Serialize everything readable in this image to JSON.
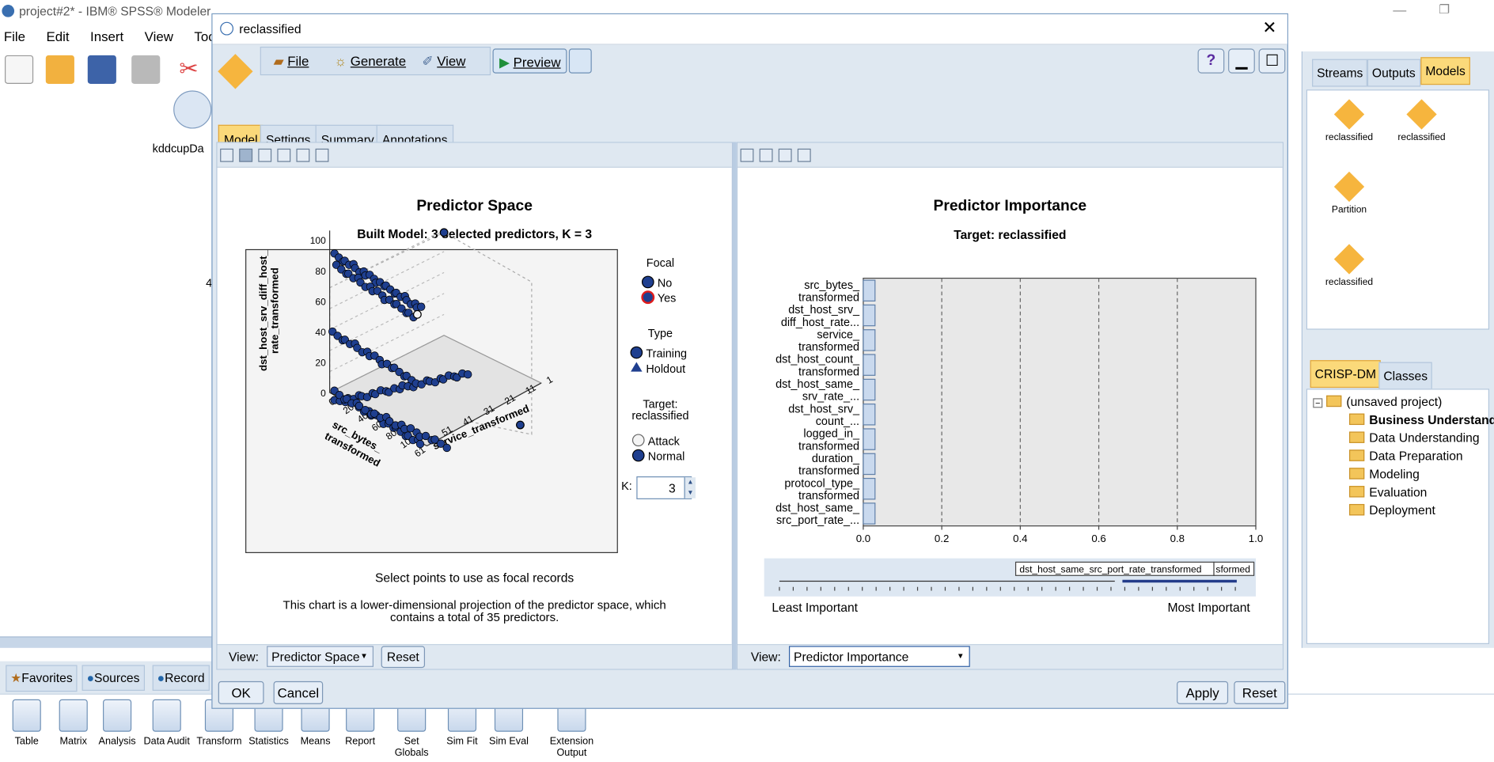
{
  "app": {
    "window_title": "project#2* - IBM® SPSS® Modeler",
    "menus": [
      "File",
      "Edit",
      "Insert",
      "View",
      "Tools"
    ],
    "canvas_node_label": "kddcupDa",
    "canvas_fragment": "4"
  },
  "dialog": {
    "title": "reclassified",
    "toolbar": {
      "file": "File",
      "generate": "Generate",
      "view": "View",
      "preview": "Preview"
    },
    "tabs": [
      "Model",
      "Settings",
      "Summary",
      "Annotations"
    ],
    "ok": "OK",
    "cancel": "Cancel",
    "apply": "Apply",
    "reset": "Reset"
  },
  "left_panel": {
    "title": "Predictor Space",
    "subtitle": "Built Model: 3 selected predictors, K = 3",
    "legend": {
      "focal_title": "Focal",
      "no": "No",
      "yes": "Yes",
      "type_title": "Type",
      "training": "Training",
      "holdout": "Holdout",
      "target_title_1": "Target:",
      "target_title_2": "reclassified",
      "attack": "Attack",
      "normal": "Normal",
      "k_label": "K:",
      "k_value": "3"
    },
    "caption": "Select points to use as focal records",
    "note_1": "This chart is a lower-dimensional projection of the predictor space, which",
    "note_2": "contains a total of 35 predictors.",
    "view_label": "View:",
    "view_value": "Predictor Space",
    "reset": "Reset",
    "axes": {
      "z_label_1": "dst_host_srv_diff_host_",
      "z_label_2": "rate_transformed",
      "x_label_1": "src_bytes_",
      "x_label_2": "transformed",
      "y_label": "service_transformed",
      "z_ticks": [
        "0",
        "20",
        "40",
        "60",
        "80",
        "100"
      ],
      "x_ticks": [
        "0",
        "20",
        "40",
        "60",
        "80",
        "100",
        "61"
      ],
      "y_ticks": [
        "51",
        "41",
        "31",
        "21",
        "11",
        "1"
      ]
    }
  },
  "right_panel": {
    "view_label": "View:",
    "view_value": "Predictor Importance",
    "slider_tooltip": "dst_host_same_src_port_rate_transformed",
    "slider_tooltip_overflow": "sformed",
    "least": "Least Important",
    "most": "Most Important"
  },
  "chart_data": {
    "type": "bar",
    "title": "Predictor Importance",
    "subtitle": "Target: reclassified",
    "categories": [
      [
        "src_bytes_",
        "transformed"
      ],
      [
        "dst_host_srv_",
        "diff_host_rate..."
      ],
      [
        "service_",
        "transformed"
      ],
      [
        "dst_host_count_",
        "transformed"
      ],
      [
        "dst_host_same_",
        "srv_rate_..."
      ],
      [
        "dst_host_srv_",
        "count_..."
      ],
      [
        "logged_in_",
        "transformed"
      ],
      [
        "duration_",
        "transformed"
      ],
      [
        "protocol_type_",
        "transformed"
      ],
      [
        "dst_host_same_",
        "src_port_rate_..."
      ]
    ],
    "values": [
      0.03,
      0.03,
      0.03,
      0.03,
      0.03,
      0.03,
      0.03,
      0.03,
      0.03,
      0.03
    ],
    "xlim": [
      0,
      1
    ],
    "xticks": [
      "0.0",
      "0.2",
      "0.4",
      "0.6",
      "0.8",
      "1.0"
    ],
    "grid": true,
    "orientation": "horizontal"
  },
  "sidebar": {
    "tabs": [
      "Streams",
      "Outputs",
      "Models"
    ],
    "models": [
      "reclassified",
      "reclassified",
      "Partition",
      "reclassified"
    ],
    "bottom_tabs": [
      "CRISP-DM",
      "Classes"
    ],
    "tree": [
      "(unsaved project)",
      "Business Understanding",
      "Data Understanding",
      "Data Preparation",
      "Modeling",
      "Evaluation",
      "Deployment"
    ]
  },
  "palette_tabs": [
    "Favorites",
    "Sources",
    "Record"
  ],
  "palette": [
    "Table",
    "Matrix",
    "Analysis",
    "Data Audit",
    "Transform",
    "Statistics",
    "Means",
    "Report",
    "Set Globals",
    "Sim Fit",
    "Sim Eval",
    "Extension Output"
  ]
}
